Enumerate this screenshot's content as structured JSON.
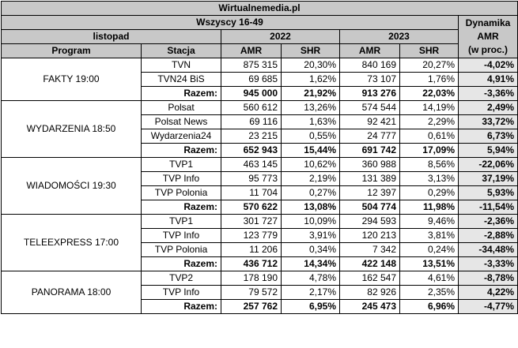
{
  "title": "Wirtualnemedia.pl",
  "subtitle": "Wszyscy 16-49",
  "period": "listopad",
  "years": [
    "2022",
    "2023"
  ],
  "dyn_header": [
    "Dynamika",
    "AMR",
    "(w proc.)"
  ],
  "columns": {
    "program": "Program",
    "station": "Stacja",
    "amr": "AMR",
    "shr": "SHR"
  },
  "groups": [
    {
      "program": "FAKTY 19:00",
      "rows": [
        {
          "station": "TVN",
          "amr22": "875 315",
          "shr22": "20,30%",
          "amr23": "840 169",
          "shr23": "20,27%",
          "dyn": "-4,02%"
        },
        {
          "station": "TVN24 BiS",
          "amr22": "69 685",
          "shr22": "1,62%",
          "amr23": "73 107",
          "shr23": "1,76%",
          "dyn": "4,91%"
        },
        {
          "station": "Razem:",
          "amr22": "945 000",
          "shr22": "21,92%",
          "amr23": "913 276",
          "shr23": "22,03%",
          "dyn": "-3,36%",
          "total": true
        }
      ]
    },
    {
      "program": "WYDARZENIA 18:50",
      "rows": [
        {
          "station": "Polsat",
          "amr22": "560 612",
          "shr22": "13,26%",
          "amr23": "574 544",
          "shr23": "14,19%",
          "dyn": "2,49%"
        },
        {
          "station": "Polsat News",
          "amr22": "69 116",
          "shr22": "1,63%",
          "amr23": "92 421",
          "shr23": "2,29%",
          "dyn": "33,72%"
        },
        {
          "station": "Wydarzenia24",
          "amr22": "23 215",
          "shr22": "0,55%",
          "amr23": "24 777",
          "shr23": "0,61%",
          "dyn": "6,73%"
        },
        {
          "station": "Razem:",
          "amr22": "652 943",
          "shr22": "15,44%",
          "amr23": "691 742",
          "shr23": "17,09%",
          "dyn": "5,94%",
          "total": true
        }
      ]
    },
    {
      "program": "WIADOMOŚCI 19:30",
      "rows": [
        {
          "station": "TVP1",
          "amr22": "463 145",
          "shr22": "10,62%",
          "amr23": "360 988",
          "shr23": "8,56%",
          "dyn": "-22,06%"
        },
        {
          "station": "TVP Info",
          "amr22": "95 773",
          "shr22": "2,19%",
          "amr23": "131 389",
          "shr23": "3,13%",
          "dyn": "37,19%"
        },
        {
          "station": "TVP Polonia",
          "amr22": "11 704",
          "shr22": "0,27%",
          "amr23": "12 397",
          "shr23": "0,29%",
          "dyn": "5,93%"
        },
        {
          "station": "Razem:",
          "amr22": "570 622",
          "shr22": "13,08%",
          "amr23": "504 774",
          "shr23": "11,98%",
          "dyn": "-11,54%",
          "total": true
        }
      ]
    },
    {
      "program": "TELEEXPRESS 17:00",
      "rows": [
        {
          "station": "TVP1",
          "amr22": "301 727",
          "shr22": "10,09%",
          "amr23": "294 593",
          "shr23": "9,46%",
          "dyn": "-2,36%"
        },
        {
          "station": "TVP Info",
          "amr22": "123 779",
          "shr22": "3,91%",
          "amr23": "120 213",
          "shr23": "3,81%",
          "dyn": "-2,88%"
        },
        {
          "station": "TVP Polonia",
          "amr22": "11 206",
          "shr22": "0,34%",
          "amr23": "7 342",
          "shr23": "0,24%",
          "dyn": "-34,48%"
        },
        {
          "station": "Razem:",
          "amr22": "436 712",
          "shr22": "14,34%",
          "amr23": "422 148",
          "shr23": "13,51%",
          "dyn": "-3,33%",
          "total": true
        }
      ]
    },
    {
      "program": "PANORAMA 18:00",
      "rows": [
        {
          "station": "TVP2",
          "amr22": "178 190",
          "shr22": "4,78%",
          "amr23": "162 547",
          "shr23": "4,61%",
          "dyn": "-8,78%"
        },
        {
          "station": "TVP Info",
          "amr22": "79 572",
          "shr22": "2,17%",
          "amr23": "82 926",
          "shr23": "2,35%",
          "dyn": "4,22%"
        },
        {
          "station": "Razem:",
          "amr22": "257 762",
          "shr22": "6,95%",
          "amr23": "245 473",
          "shr23": "6,96%",
          "dyn": "-4,77%",
          "total": true
        }
      ]
    }
  ]
}
